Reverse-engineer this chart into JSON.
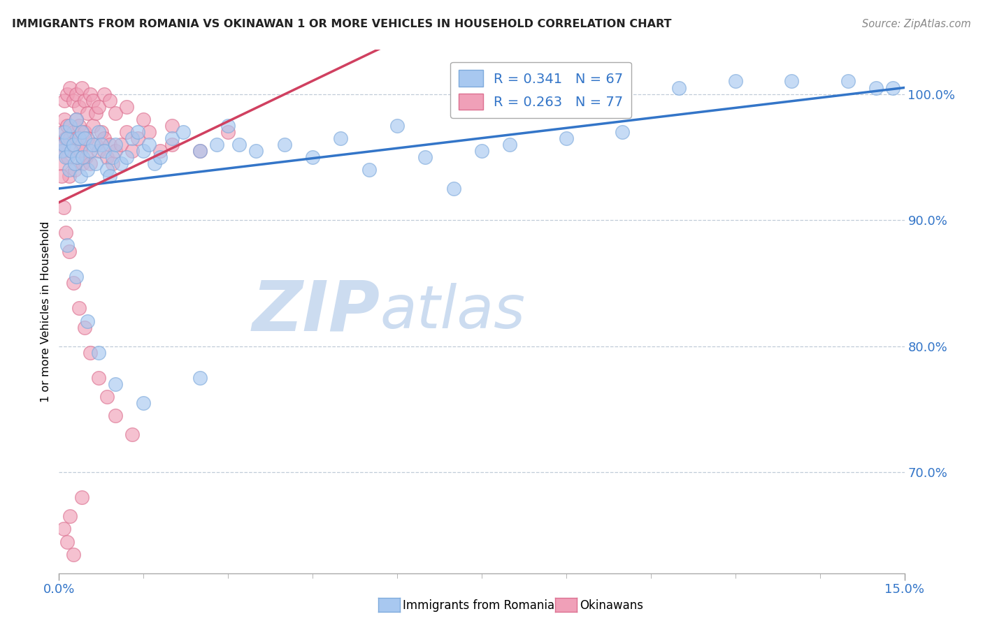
{
  "title": "IMMIGRANTS FROM ROMANIA VS OKINAWAN 1 OR MORE VEHICLES IN HOUSEHOLD CORRELATION CHART",
  "source_text": "Source: ZipAtlas.com",
  "ylabel": "1 or more Vehicles in Household",
  "xlim": [
    0.0,
    15.0
  ],
  "ylim": [
    62.0,
    103.5
  ],
  "ytick_values": [
    70.0,
    80.0,
    90.0,
    100.0
  ],
  "legend_blue_label": "Immigrants from Romania",
  "legend_pink_label": "Okinawans",
  "R_blue": 0.341,
  "N_blue": 67,
  "R_pink": 0.263,
  "N_pink": 77,
  "blue_color": "#a8c8f0",
  "pink_color": "#f0a0b8",
  "blue_edge_color": "#7eaadc",
  "pink_edge_color": "#dc7090",
  "blue_line_color": "#3375c8",
  "pink_line_color": "#d04060",
  "watermark_zip": "ZIP",
  "watermark_atlas": "atlas",
  "watermark_color": "#ccdcf0",
  "blue_scatter_x": [
    0.05,
    0.08,
    0.1,
    0.12,
    0.15,
    0.18,
    0.2,
    0.22,
    0.25,
    0.28,
    0.3,
    0.32,
    0.35,
    0.38,
    0.4,
    0.42,
    0.45,
    0.5,
    0.55,
    0.6,
    0.65,
    0.7,
    0.75,
    0.8,
    0.85,
    0.9,
    0.95,
    1.0,
    1.1,
    1.2,
    1.3,
    1.4,
    1.5,
    1.6,
    1.7,
    1.8,
    2.0,
    2.2,
    2.5,
    2.8,
    3.0,
    3.2,
    3.5,
    4.0,
    4.5,
    5.0,
    5.5,
    6.0,
    6.5,
    7.0,
    7.5,
    8.0,
    9.0,
    10.0,
    11.0,
    12.0,
    13.0,
    14.0,
    14.5,
    14.8,
    0.15,
    0.3,
    0.5,
    0.7,
    1.0,
    1.5,
    2.5
  ],
  "blue_scatter_y": [
    95.5,
    96.0,
    97.0,
    95.0,
    96.5,
    94.0,
    97.5,
    95.5,
    96.0,
    94.5,
    98.0,
    95.0,
    96.5,
    93.5,
    97.0,
    95.0,
    96.5,
    94.0,
    95.5,
    96.0,
    94.5,
    97.0,
    96.0,
    95.5,
    94.0,
    93.5,
    95.0,
    96.0,
    94.5,
    95.0,
    96.5,
    97.0,
    95.5,
    96.0,
    94.5,
    95.0,
    96.5,
    97.0,
    95.5,
    96.0,
    97.5,
    96.0,
    95.5,
    96.0,
    95.0,
    96.5,
    94.0,
    97.5,
    95.0,
    92.5,
    95.5,
    96.0,
    96.5,
    97.0,
    100.5,
    101.0,
    101.0,
    101.0,
    100.5,
    100.5,
    88.0,
    85.5,
    82.0,
    79.5,
    77.0,
    75.5,
    77.5
  ],
  "pink_scatter_x": [
    0.02,
    0.04,
    0.06,
    0.08,
    0.1,
    0.12,
    0.14,
    0.16,
    0.18,
    0.2,
    0.22,
    0.25,
    0.28,
    0.3,
    0.32,
    0.35,
    0.38,
    0.4,
    0.42,
    0.45,
    0.48,
    0.5,
    0.55,
    0.6,
    0.65,
    0.7,
    0.75,
    0.8,
    0.85,
    0.9,
    0.95,
    1.0,
    1.1,
    1.2,
    1.3,
    1.4,
    1.6,
    1.8,
    2.0,
    2.5,
    3.0,
    0.1,
    0.15,
    0.2,
    0.25,
    0.3,
    0.35,
    0.4,
    0.45,
    0.5,
    0.55,
    0.6,
    0.65,
    0.7,
    0.8,
    0.9,
    1.0,
    1.2,
    1.5,
    2.0,
    0.05,
    0.08,
    0.12,
    0.18,
    0.25,
    0.35,
    0.45,
    0.55,
    0.7,
    0.85,
    1.0,
    1.3,
    0.08,
    0.2,
    0.4,
    0.15,
    0.25
  ],
  "pink_scatter_y": [
    96.0,
    94.5,
    97.0,
    95.5,
    98.0,
    96.5,
    97.5,
    95.0,
    93.5,
    96.5,
    95.5,
    97.0,
    94.0,
    98.0,
    96.5,
    97.5,
    95.5,
    96.0,
    94.5,
    97.0,
    95.0,
    96.5,
    94.5,
    97.5,
    96.0,
    95.5,
    97.0,
    96.5,
    95.0,
    96.0,
    94.5,
    95.5,
    96.0,
    97.0,
    95.5,
    96.5,
    97.0,
    95.5,
    96.0,
    95.5,
    97.0,
    99.5,
    100.0,
    100.5,
    99.5,
    100.0,
    99.0,
    100.5,
    99.5,
    98.5,
    100.0,
    99.5,
    98.5,
    99.0,
    100.0,
    99.5,
    98.5,
    99.0,
    98.0,
    97.5,
    93.5,
    91.0,
    89.0,
    87.5,
    85.0,
    83.0,
    81.5,
    79.5,
    77.5,
    76.0,
    74.5,
    73.0,
    65.5,
    66.5,
    68.0,
    64.5,
    63.5
  ]
}
